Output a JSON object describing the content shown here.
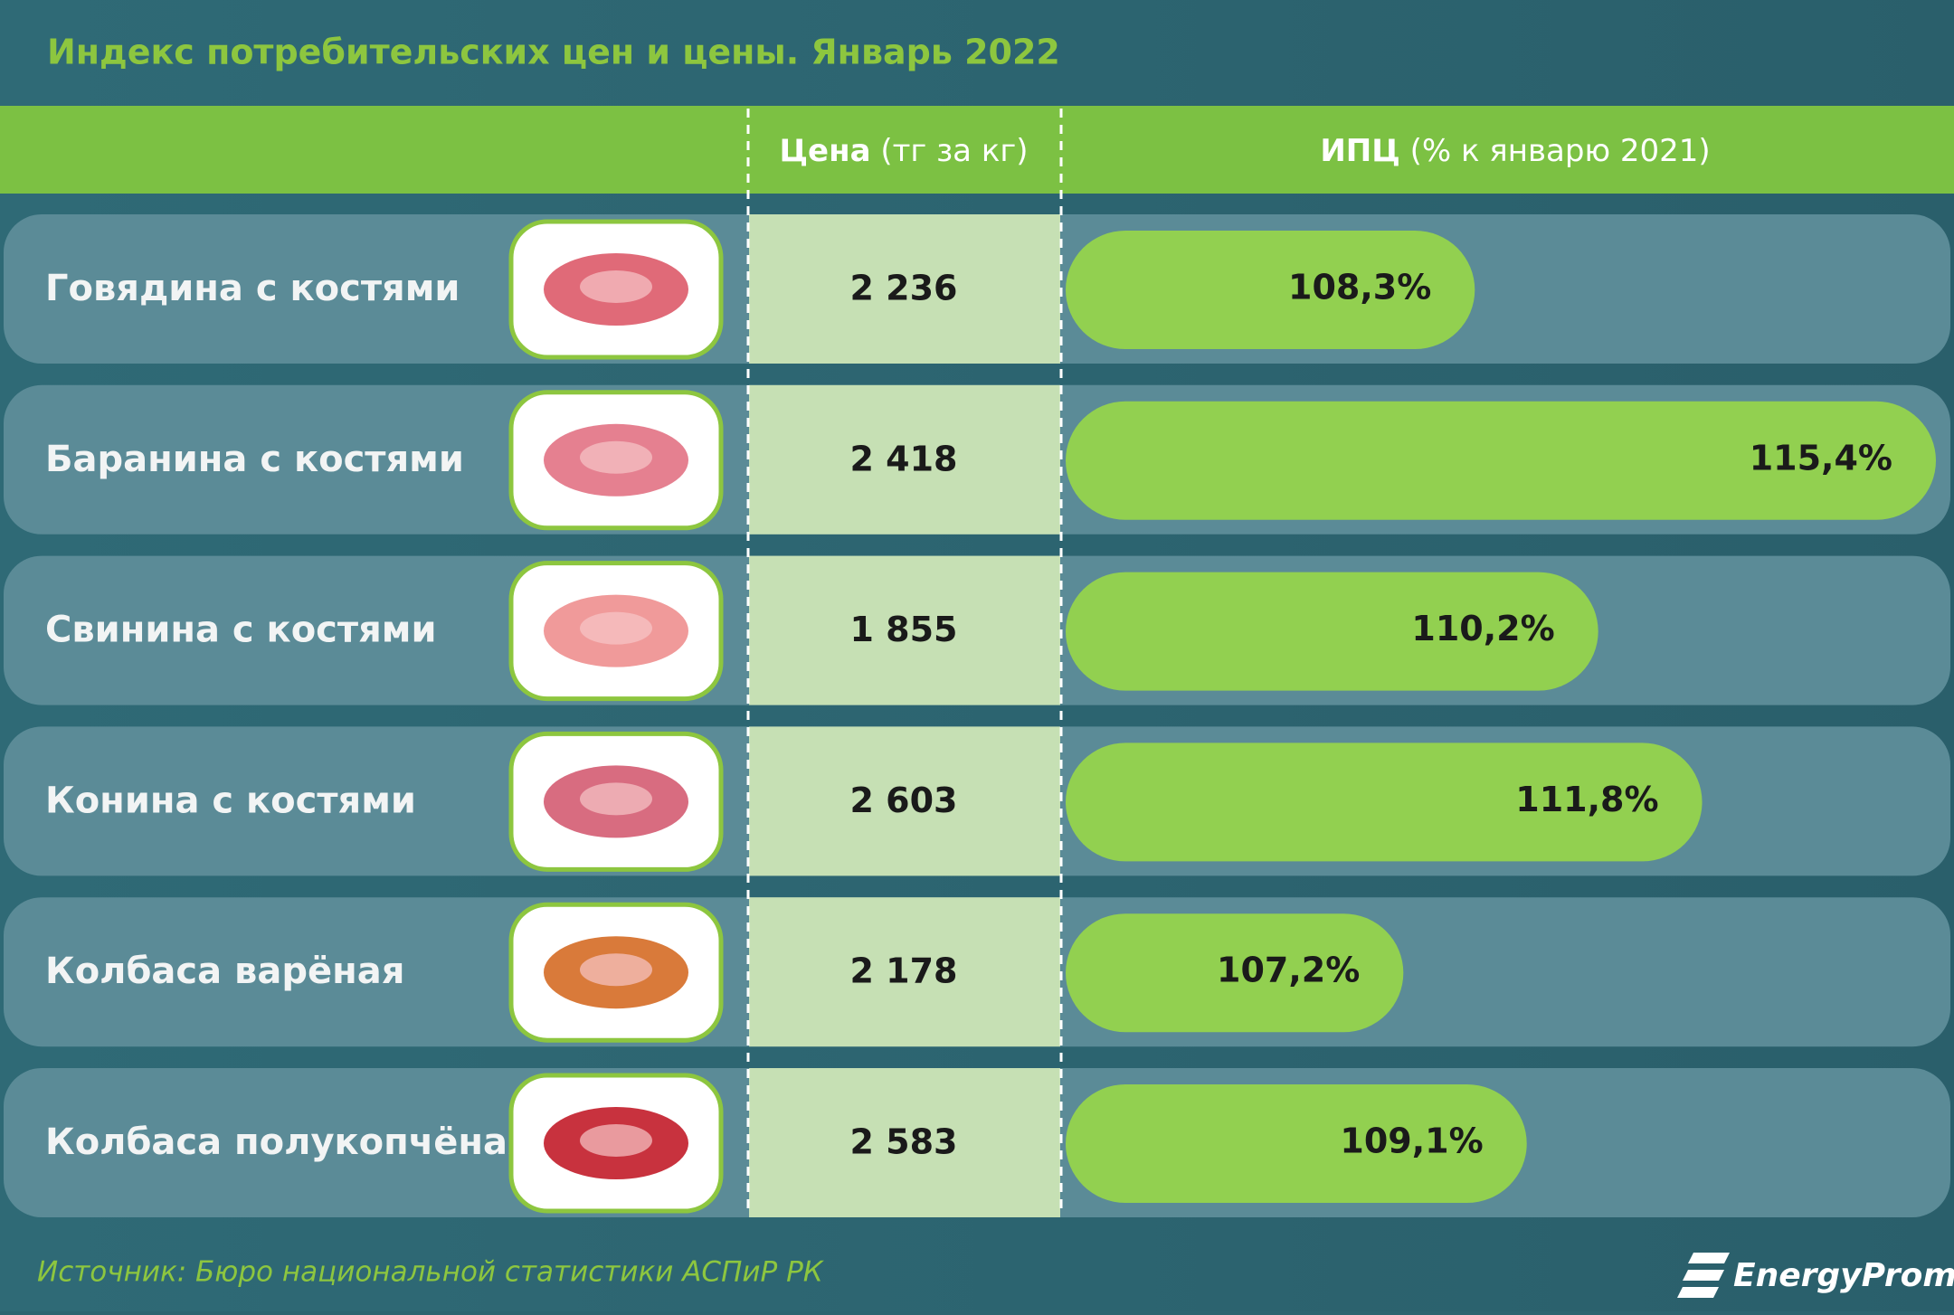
{
  "chart_data": {
    "type": "bar",
    "orientation": "horizontal",
    "title": "Индекс потребительских цен и цены. Январь 2022",
    "price_header": {
      "bold": "Цена",
      "rest": "(тг за кг)"
    },
    "cpi_header": {
      "bold": "ИПЦ",
      "rest": "(% к январю 2021)"
    },
    "categories": [
      "Говядина с костями",
      "Баранина с костями",
      "Свинина с костями",
      "Конина с костями",
      "Колбаса варёная",
      "Колбаса полукопчёная"
    ],
    "prices": [
      2236,
      2418,
      1855,
      2603,
      2178,
      2583
    ],
    "price_labels": [
      "2 236",
      "2 418",
      "1 855",
      "2 603",
      "2 178",
      "2 583"
    ],
    "values": [
      108.3,
      115.4,
      110.2,
      111.8,
      107.2,
      109.1
    ],
    "value_labels": [
      "108,3%",
      "115,4%",
      "110,2%",
      "111,8%",
      "107,2%",
      "109,1%"
    ],
    "xlim": [
      102,
      115.4
    ],
    "color": "#92d050",
    "source": "Источник: Бюро национальной статистики АСПиР РК",
    "logo": "EnergyProm"
  }
}
